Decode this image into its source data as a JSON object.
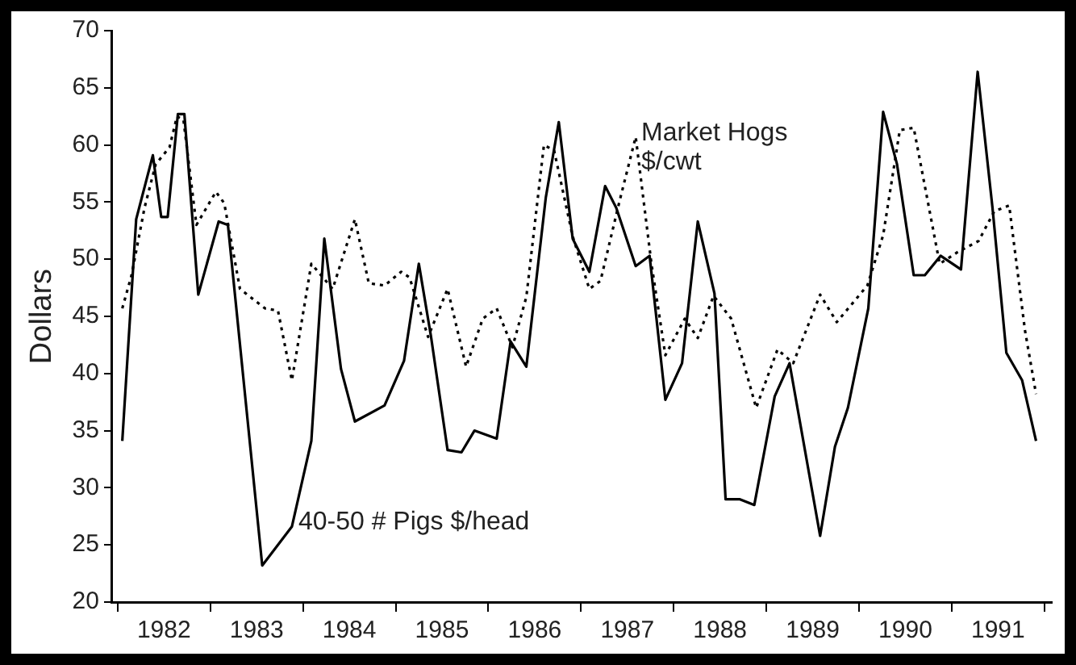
{
  "chart_data": {
    "type": "line",
    "ylabel": "Dollars",
    "xlim": [
      1981.94,
      1992.08
    ],
    "ylim": [
      20,
      70
    ],
    "xticks": [
      {
        "value": 1982,
        "label": null
      },
      {
        "value": 1982.5,
        "label": "1982"
      },
      {
        "value": 1983,
        "label": null
      },
      {
        "value": 1983.5,
        "label": "1983"
      },
      {
        "value": 1984,
        "label": null
      },
      {
        "value": 1984.5,
        "label": "1984"
      },
      {
        "value": 1985,
        "label": null
      },
      {
        "value": 1985.5,
        "label": "1985"
      },
      {
        "value": 1986,
        "label": null
      },
      {
        "value": 1986.5,
        "label": "1986"
      },
      {
        "value": 1987,
        "label": null
      },
      {
        "value": 1987.5,
        "label": "1987"
      },
      {
        "value": 1988,
        "label": null
      },
      {
        "value": 1988.5,
        "label": "1988"
      },
      {
        "value": 1989,
        "label": null
      },
      {
        "value": 1989.5,
        "label": "1989"
      },
      {
        "value": 1990,
        "label": null
      },
      {
        "value": 1990.5,
        "label": "1990"
      },
      {
        "value": 1991,
        "label": null
      },
      {
        "value": 1991.5,
        "label": "1991"
      },
      {
        "value": 1992,
        "label": null
      }
    ],
    "yticks": [
      20,
      25,
      30,
      35,
      40,
      45,
      50,
      55,
      60,
      65,
      70
    ],
    "grid": false,
    "legend": false,
    "marker": "none",
    "series": [
      {
        "color": "#000000",
        "line_style": "solid",
        "x": [
          1982.05,
          1982.2,
          1982.38,
          1982.47,
          1982.54,
          1982.65,
          1982.72,
          1982.87,
          1983.09,
          1983.19,
          1983.56,
          1983.88,
          1984.09,
          1984.23,
          1984.41,
          1984.56,
          1984.88,
          1985.09,
          1985.25,
          1985.38,
          1985.56,
          1985.71,
          1985.85,
          1986.09,
          1986.24,
          1986.41,
          1986.62,
          1986.76,
          1986.91,
          1987.09,
          1987.26,
          1987.38,
          1987.59,
          1987.74,
          1987.91,
          1988.09,
          1988.26,
          1988.44,
          1988.56,
          1988.71,
          1988.87,
          1989.09,
          1989.25,
          1989.58,
          1989.74,
          1989.88,
          1990.1,
          1990.26,
          1990.41,
          1990.59,
          1990.71,
          1990.88,
          1991.1,
          1991.28,
          1991.44,
          1991.59,
          1991.76,
          1991.91
        ],
        "values": [
          34.1,
          53.5,
          59.1,
          53.7,
          53.7,
          62.7,
          62.7,
          46.9,
          53.3,
          53,
          23.2,
          26.6,
          34.1,
          51.8,
          40.4,
          35.8,
          37.2,
          41.1,
          49.6,
          43.3,
          33.3,
          33.1,
          35,
          34.3,
          42.8,
          40.6,
          55.4,
          62,
          51.8,
          48.9,
          56.4,
          54.5,
          49.4,
          50.3,
          37.7,
          40.9,
          53.3,
          47,
          29,
          29,
          28.5,
          38,
          40.9,
          25.8,
          33.6,
          37,
          45.7,
          62.9,
          58.3,
          48.6,
          48.6,
          50.3,
          49.1,
          66.4,
          54.5,
          41.8,
          39.4,
          34.1
        ]
      },
      {
        "color": "#000000",
        "line_style": "dotted",
        "x": [
          1982.05,
          1982.15,
          1982.29,
          1982.41,
          1982.56,
          1982.64,
          1982.71,
          1982.85,
          1983.06,
          1983.15,
          1983.32,
          1983.59,
          1983.73,
          1983.88,
          1984.09,
          1984.32,
          1984.56,
          1984.71,
          1984.88,
          1985.06,
          1985.15,
          1985.35,
          1985.56,
          1985.76,
          1985.94,
          1986.09,
          1986.26,
          1986.41,
          1986.6,
          1986.71,
          1986.91,
          1987.09,
          1987.21,
          1987.41,
          1987.59,
          1987.76,
          1987.91,
          1988.12,
          1988.26,
          1988.43,
          1988.62,
          1988.89,
          1989.12,
          1989.29,
          1989.58,
          1989.76,
          1990.09,
          1990.26,
          1990.44,
          1990.59,
          1990.87,
          1991.06,
          1991.29,
          1991.46,
          1991.62,
          1991.79,
          1991.91
        ],
        "values": [
          45.7,
          48.6,
          54.5,
          58.3,
          59.8,
          62.5,
          62.2,
          53,
          55.9,
          54.9,
          47.4,
          45.7,
          45.5,
          39.4,
          49.6,
          47.4,
          53.5,
          47.9,
          47.7,
          48.9,
          48.4,
          43.2,
          47.4,
          40.6,
          44.8,
          45.7,
          42.3,
          46.7,
          60,
          59.5,
          52,
          47.4,
          48.1,
          54.9,
          60.7,
          49.6,
          41.6,
          44.8,
          43.1,
          46.8,
          44.8,
          37,
          42.1,
          40.9,
          46.9,
          44.5,
          47.7,
          52.1,
          61.3,
          61.5,
          49.6,
          50.6,
          51.6,
          54.2,
          54.7,
          43.8,
          38.2
        ]
      }
    ],
    "annotations": [
      {
        "text": "Market Hogs\n$/cwt",
        "x": 1987.65,
        "y": 61
      },
      {
        "text": "40-50 # Pigs $/head",
        "x": 1983.95,
        "y": 27
      }
    ]
  }
}
